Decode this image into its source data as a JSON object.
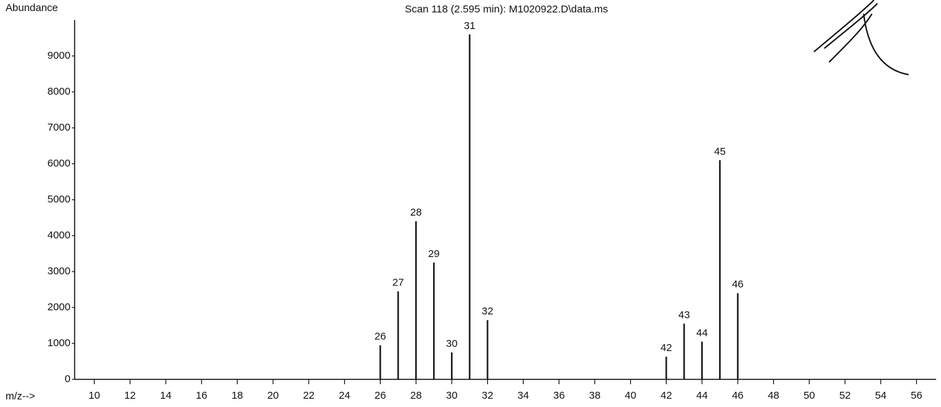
{
  "chart_data": {
    "type": "bar",
    "title": "Scan 118 (2.595 min): M1020922.D\\data.ms",
    "y_label": "Abundance",
    "x_label": "m/z-->",
    "x": [
      26,
      27,
      28,
      29,
      30,
      31,
      32,
      42,
      43,
      44,
      45,
      46
    ],
    "values": [
      950,
      2450,
      4400,
      3250,
      750,
      9600,
      1650,
      630,
      1550,
      1050,
      6100,
      2400
    ],
    "color": "#111111",
    "xlim": [
      8.9,
      57.1
    ],
    "xticks": [
      10,
      12,
      14,
      16,
      18,
      20,
      22,
      24,
      26,
      28,
      30,
      32,
      34,
      36,
      38,
      40,
      42,
      44,
      46,
      48,
      50,
      52,
      54,
      56
    ],
    "ylim": [
      0,
      10000
    ],
    "yticks": [
      0,
      1000,
      2000,
      3000,
      4000,
      5000,
      6000,
      7000,
      8000,
      9000
    ],
    "grid": false
  }
}
